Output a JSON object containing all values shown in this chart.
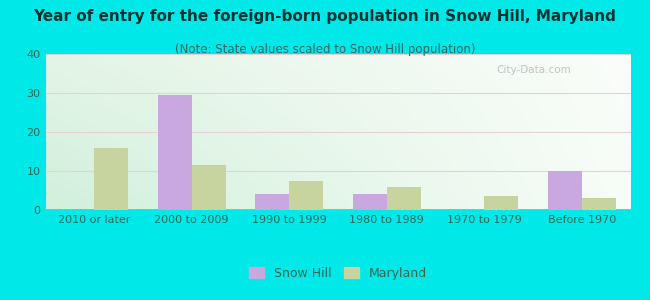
{
  "title": "Year of entry for the foreign-born population in Snow Hill, Maryland",
  "subtitle": "(Note: State values scaled to Snow Hill population)",
  "categories": [
    "2010 or later",
    "2000 to 2009",
    "1990 to 1999",
    "1980 to 1989",
    "1970 to 1979",
    "Before 1970"
  ],
  "snow_hill": [
    0,
    29.5,
    4,
    4,
    0,
    10
  ],
  "maryland": [
    16,
    11.5,
    7.5,
    6,
    3.5,
    3
  ],
  "snow_hill_color": "#c9a8e0",
  "maryland_color": "#c8d4a0",
  "background_outer": "#00e8e8",
  "ylim": [
    0,
    40
  ],
  "yticks": [
    0,
    10,
    20,
    30,
    40
  ],
  "bar_width": 0.35,
  "title_fontsize": 11,
  "subtitle_fontsize": 8.5,
  "tick_fontsize": 8,
  "legend_fontsize": 9
}
